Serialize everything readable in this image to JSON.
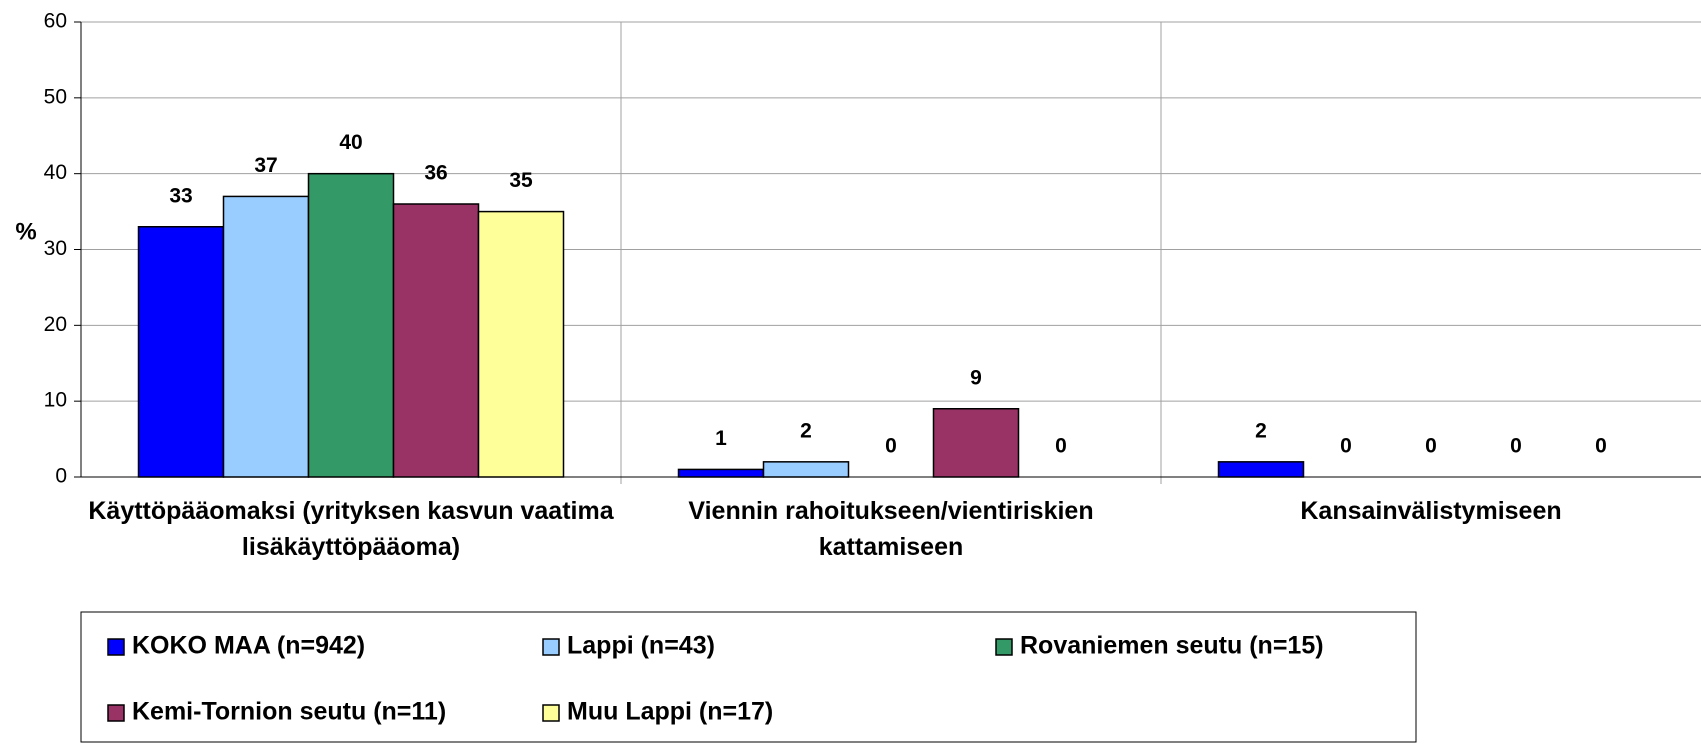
{
  "chart_data": {
    "type": "bar",
    "y_label": "%",
    "categories": [
      "Käyttöpääomaksi (yrityksen kasvun vaatima lisäkäyttöpääoma)",
      "Viennin rahoitukseen/vientiriskien kattamiseen",
      "Kansainvälistymiseen"
    ],
    "series": [
      {
        "name": "KOKO MAA (n=942)",
        "color": "#0000ff",
        "values": [
          33,
          1,
          2
        ]
      },
      {
        "name": "Lappi (n=43)",
        "color": "#99ccff",
        "values": [
          37,
          2,
          0
        ]
      },
      {
        "name": "Rovaniemen seutu (n=15)",
        "color": "#339966",
        "values": [
          40,
          0,
          0
        ]
      },
      {
        "name": "Kemi-Tornion seutu (n=11)",
        "color": "#993366",
        "values": [
          36,
          9,
          0
        ]
      },
      {
        "name": "Muu Lappi (n=17)",
        "color": "#ffff99",
        "values": [
          35,
          0,
          0
        ]
      }
    ],
    "ylim": [
      0,
      60
    ],
    "yticks": [
      0,
      10,
      20,
      30,
      40,
      50,
      60
    ],
    "grid": true,
    "legend": "bottom"
  }
}
